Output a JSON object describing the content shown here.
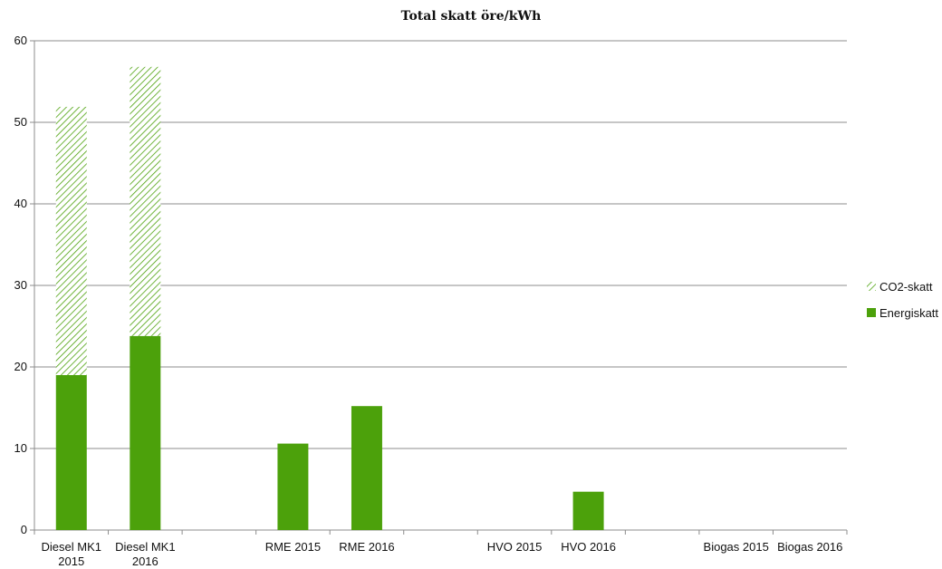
{
  "chart_data": {
    "type": "bar",
    "stacked": true,
    "title": "Total skatt öre/kWh",
    "xlabel": "",
    "ylabel": "",
    "ylim": [
      0,
      60
    ],
    "yticks": [
      "0",
      "10",
      "20",
      "30",
      "40",
      "50",
      "60"
    ],
    "grid": true,
    "legend_position": "right",
    "categories": [
      [
        "Diesel MK1",
        "2015"
      ],
      [
        "Diesel MK1",
        "2016"
      ],
      [
        ""
      ],
      [
        "RME 2015"
      ],
      [
        "RME 2016"
      ],
      [
        ""
      ],
      [
        "HVO 2015"
      ],
      [
        "HVO 2016"
      ],
      [
        ""
      ],
      [
        "Biogas 2015"
      ],
      [
        "Biogas 2016"
      ]
    ],
    "series": [
      {
        "name": "Energiskatt",
        "color": "#4ca10b",
        "pattern": "solid",
        "values": [
          19.0,
          23.8,
          null,
          10.6,
          15.2,
          null,
          0,
          4.7,
          null,
          0,
          0
        ]
      },
      {
        "name": "CO2-skatt",
        "color": "#4ca10b",
        "pattern": "diagonal-hatch",
        "values": [
          32.9,
          33.0,
          null,
          0,
          0,
          null,
          0,
          0,
          null,
          0,
          0
        ]
      }
    ],
    "legend_order": [
      "CO2-skatt",
      "Energiskatt"
    ]
  }
}
